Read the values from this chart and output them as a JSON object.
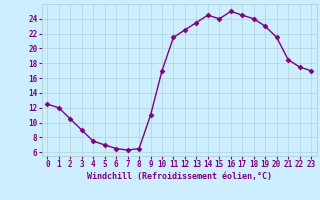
{
  "x": [
    0,
    1,
    2,
    3,
    4,
    5,
    6,
    7,
    8,
    9,
    10,
    11,
    12,
    13,
    14,
    15,
    16,
    17,
    18,
    19,
    20,
    21,
    22,
    23
  ],
  "y": [
    12.5,
    12.0,
    10.5,
    9.0,
    7.5,
    7.0,
    6.5,
    6.3,
    6.5,
    11.0,
    17.0,
    21.5,
    22.5,
    23.5,
    24.5,
    24.0,
    25.0,
    24.5,
    24.0,
    23.0,
    21.5,
    18.5,
    17.5,
    17.0
  ],
  "line_color": "#800080",
  "marker": "D",
  "marker_size": 2.5,
  "bg_color": "#cceeff",
  "grid_color": "#aacccc",
  "xlabel": "Windchill (Refroidissement éolien,°C)",
  "xlim": [
    -0.5,
    23.5
  ],
  "ylim": [
    5.5,
    26.0
  ],
  "xticks": [
    0,
    1,
    2,
    3,
    4,
    5,
    6,
    7,
    8,
    9,
    10,
    11,
    12,
    13,
    14,
    15,
    16,
    17,
    18,
    19,
    20,
    21,
    22,
    23
  ],
  "yticks": [
    6,
    8,
    10,
    12,
    14,
    16,
    18,
    20,
    22,
    24
  ],
  "line_width": 1.0,
  "font_color": "#800080",
  "tick_fontsize": 5.5,
  "label_fontsize": 6.0
}
